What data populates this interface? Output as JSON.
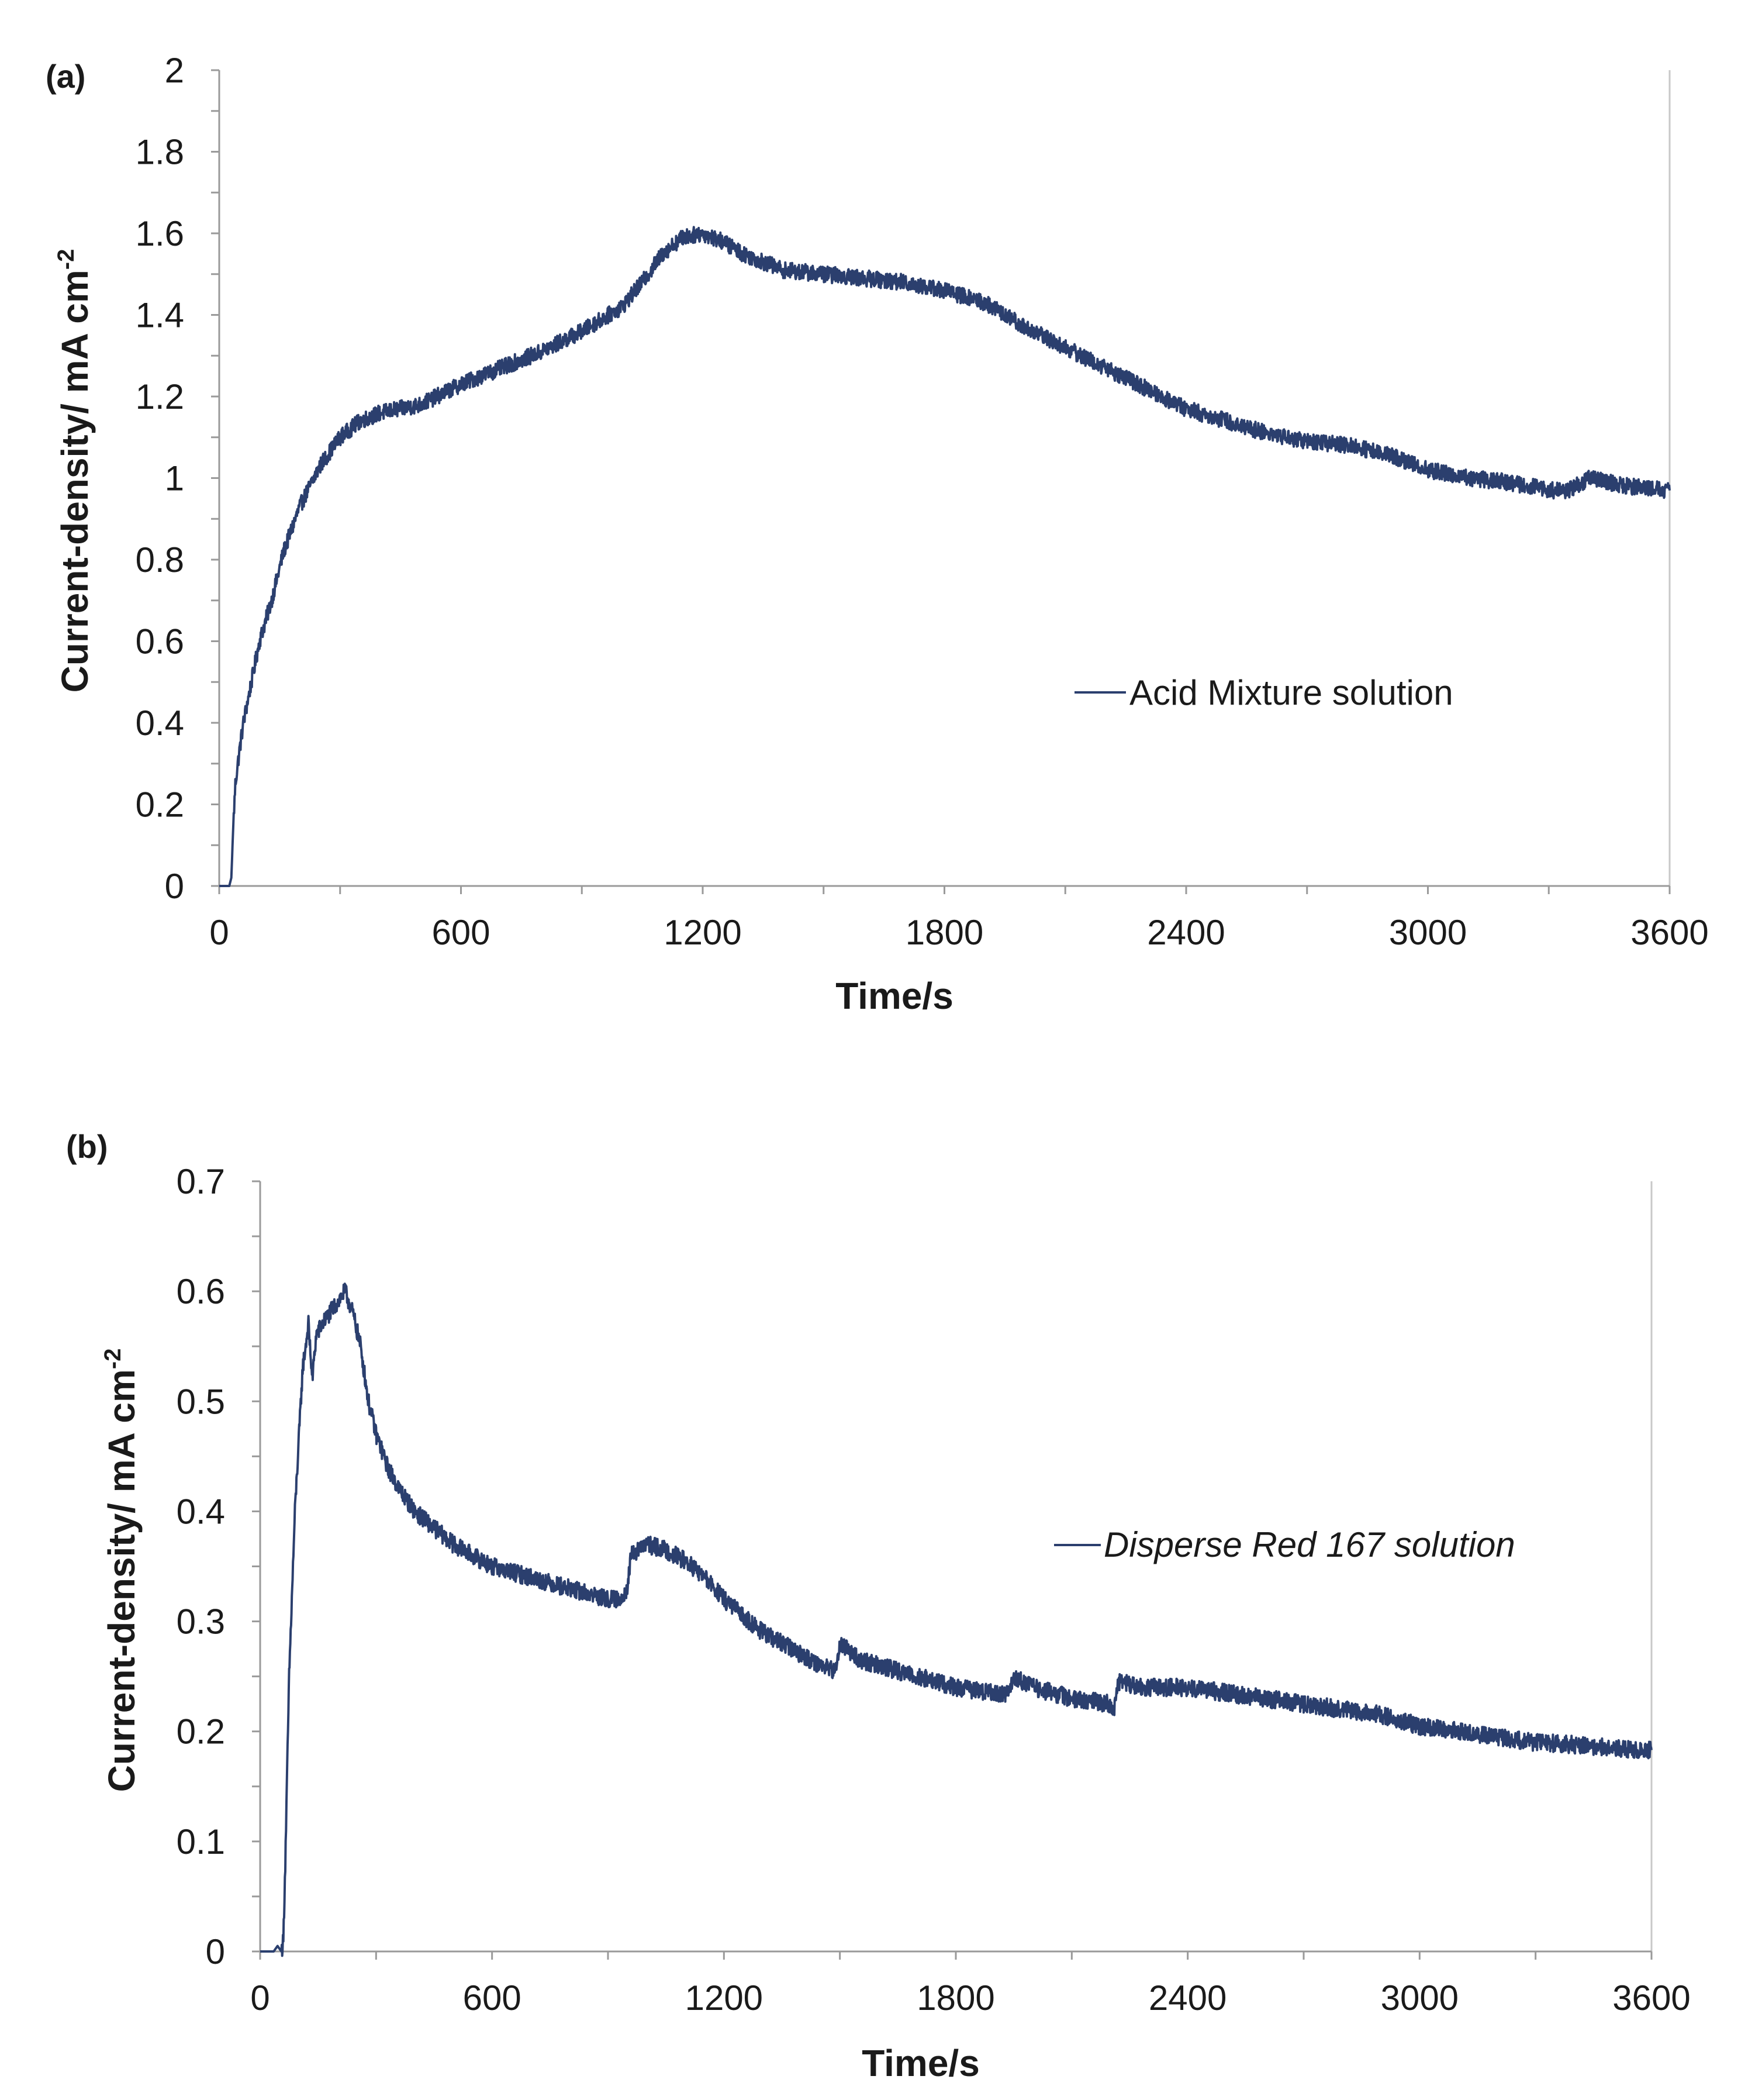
{
  "chart_data": [
    {
      "panel_label": "(a)",
      "type": "line",
      "xlabel": "Time/s",
      "ylabel_main": "Current-density/ mA cm",
      "ylabel_sup": "-2",
      "xlim": [
        0,
        3600
      ],
      "ylim": [
        0,
        2
      ],
      "xticks": [
        0,
        600,
        1200,
        1800,
        2400,
        3000,
        3600
      ],
      "xtick_labels": [
        "0",
        "600",
        "1200",
        "1800",
        "2400",
        "3000",
        "3600"
      ],
      "yticks": [
        0,
        0.2,
        0.4,
        0.6,
        0.8,
        1,
        1.2,
        1.4,
        1.6,
        1.8,
        2
      ],
      "ytick_labels": [
        "0",
        "0.2",
        "0.4",
        "0.6",
        "0.8",
        "1",
        "1.2",
        "1.4",
        "1.6",
        "1.8",
        "2"
      ],
      "minor_y": 0.1,
      "minor_x": 300,
      "series": [
        {
          "name": "Acid Mixture solution",
          "color": "#2b3f6e",
          "noise": 0.02,
          "x": [
            0,
            25,
            30,
            35,
            40,
            50,
            60,
            80,
            100,
            130,
            160,
            200,
            250,
            300,
            350,
            400,
            500,
            600,
            700,
            800,
            900,
            1000,
            1050,
            1100,
            1150,
            1200,
            1250,
            1300,
            1400,
            1500,
            1600,
            1700,
            1800,
            1900,
            2000,
            2100,
            2200,
            2300,
            2400,
            2500,
            2600,
            2700,
            2800,
            2900,
            3000,
            3100,
            3200,
            3300,
            3350,
            3400,
            3450,
            3500,
            3600
          ],
          "y": [
            0,
            0,
            0.02,
            0.15,
            0.25,
            0.33,
            0.4,
            0.5,
            0.6,
            0.7,
            0.82,
            0.93,
            1.03,
            1.1,
            1.14,
            1.16,
            1.18,
            1.23,
            1.27,
            1.31,
            1.36,
            1.42,
            1.48,
            1.55,
            1.59,
            1.6,
            1.58,
            1.55,
            1.51,
            1.5,
            1.49,
            1.48,
            1.46,
            1.43,
            1.37,
            1.32,
            1.27,
            1.22,
            1.17,
            1.14,
            1.11,
            1.09,
            1.08,
            1.06,
            1.02,
            1.0,
            0.99,
            0.97,
            0.97,
            1.0,
            0.99,
            0.98,
            0.97
          ]
        }
      ],
      "legend": "center-right"
    },
    {
      "panel_label": "(b)",
      "type": "line",
      "xlabel": "Time/s",
      "ylabel_main": "Current-density/ mA cm",
      "ylabel_sup": "-2",
      "xlim": [
        0,
        3600
      ],
      "ylim": [
        0,
        0.7
      ],
      "xticks": [
        0,
        600,
        1200,
        1800,
        2400,
        3000,
        3600
      ],
      "xtick_labels": [
        "0",
        "600",
        "1200",
        "1800",
        "2400",
        "3000",
        "3600"
      ],
      "yticks": [
        0,
        0.1,
        0.2,
        0.3,
        0.4,
        0.5,
        0.6,
        0.7
      ],
      "ytick_labels": [
        "0",
        "0.1",
        "0.2",
        "0.3",
        "0.4",
        "0.5",
        "0.6",
        "0.7"
      ],
      "minor_y": 0.05,
      "minor_x": 300,
      "series": [
        {
          "name": "Disperse Red 167 solution",
          "italic": true,
          "color": "#2b3f6e",
          "noise": 0.008,
          "x": [
            0,
            35,
            45,
            55,
            60,
            65,
            75,
            90,
            110,
            125,
            135,
            145,
            160,
            180,
            200,
            220,
            240,
            260,
            280,
            300,
            330,
            360,
            400,
            500,
            600,
            700,
            800,
            900,
            930,
            950,
            960,
            1000,
            1050,
            1100,
            1150,
            1200,
            1300,
            1400,
            1450,
            1490,
            1500,
            1520,
            1550,
            1600,
            1700,
            1800,
            1900,
            1940,
            1950,
            2000,
            2100,
            2200,
            2210,
            2220,
            2300,
            2400,
            2500,
            2600,
            2700,
            2800,
            2900,
            3000,
            3100,
            3200,
            3300,
            3400,
            3500,
            3600
          ],
          "y": [
            0,
            0,
            0.005,
            0,
            0.01,
            0.08,
            0.25,
            0.4,
            0.53,
            0.57,
            0.52,
            0.56,
            0.57,
            0.58,
            0.59,
            0.6,
            0.58,
            0.55,
            0.5,
            0.47,
            0.44,
            0.42,
            0.4,
            0.37,
            0.35,
            0.34,
            0.33,
            0.32,
            0.32,
            0.33,
            0.36,
            0.37,
            0.365,
            0.355,
            0.34,
            0.32,
            0.29,
            0.27,
            0.26,
            0.255,
            0.28,
            0.275,
            0.265,
            0.26,
            0.25,
            0.24,
            0.235,
            0.235,
            0.25,
            0.24,
            0.23,
            0.225,
            0.22,
            0.245,
            0.24,
            0.24,
            0.235,
            0.23,
            0.225,
            0.22,
            0.215,
            0.205,
            0.2,
            0.195,
            0.19,
            0.188,
            0.185,
            0.183
          ]
        }
      ],
      "legend": "center-right"
    }
  ]
}
